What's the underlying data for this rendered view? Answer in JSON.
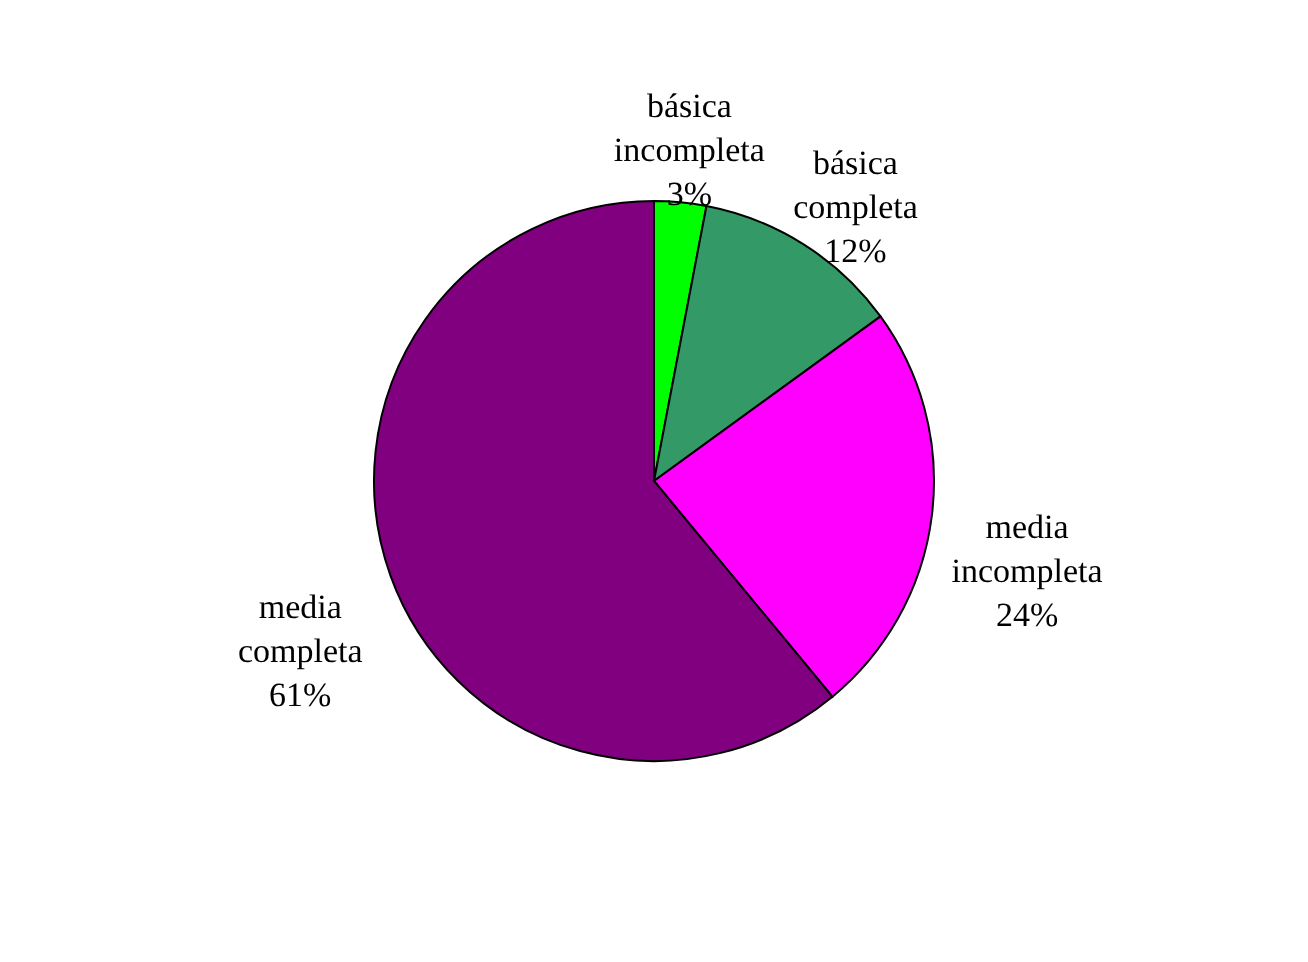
{
  "chart_data": {
    "type": "pie",
    "categories": [
      "básica\nincompleta",
      "básica\ncompleta",
      "media\nincompleta",
      "media\ncompleta"
    ],
    "values": [
      3,
      12,
      24,
      61
    ],
    "colors": [
      "#00ff00",
      "#339966",
      "#ff00ff",
      "#800080"
    ],
    "value_labels": [
      "3%",
      "12%",
      "24%",
      "61%"
    ],
    "legend": false
  }
}
